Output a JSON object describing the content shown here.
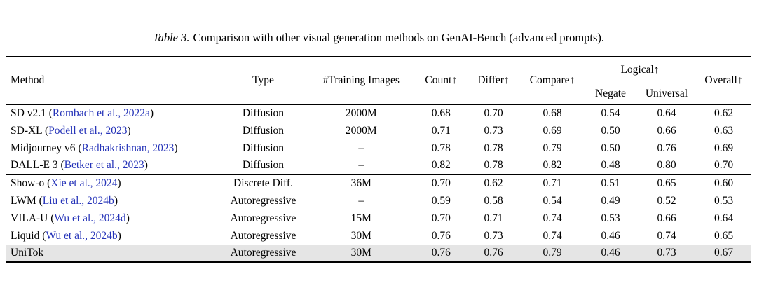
{
  "caption": {
    "label": "Table 3.",
    "text": "Comparison with other visual generation methods on GenAI-Bench (advanced prompts)."
  },
  "colors": {
    "citation": "#2533b8",
    "highlight_row": "#e5e5e5",
    "rule": "#000000",
    "background": "#ffffff"
  },
  "table": {
    "headers": {
      "method": "Method",
      "type": "Type",
      "training_images": "#Training Images",
      "count": "Count↑",
      "differ": "Differ↑",
      "compare": "Compare↑",
      "logical": "Logical↑",
      "negate": "Negate",
      "universal": "Universal",
      "overall": "Overall↑"
    },
    "groups": [
      {
        "rows": [
          {
            "method": "SD v2.1",
            "citation": "(Rombach et al., 2022a)",
            "type": "Diffusion",
            "training_images": "2000M",
            "count": "0.68",
            "differ": "0.70",
            "compare": "0.68",
            "negate": "0.54",
            "universal": "0.64",
            "overall": "0.62",
            "highlight": false
          },
          {
            "method": "SD-XL",
            "citation": "(Podell et al., 2023)",
            "type": "Diffusion",
            "training_images": "2000M",
            "count": "0.71",
            "differ": "0.73",
            "compare": "0.69",
            "negate": "0.50",
            "universal": "0.66",
            "overall": "0.63",
            "highlight": false
          },
          {
            "method": "Midjourney v6",
            "citation": "(Radhakrishnan, 2023)",
            "type": "Diffusion",
            "training_images": "–",
            "count": "0.78",
            "differ": "0.78",
            "compare": "0.79",
            "negate": "0.50",
            "universal": "0.76",
            "overall": "0.69",
            "highlight": false
          },
          {
            "method": "DALL-E 3",
            "citation": "(Betker et al., 2023)",
            "type": "Diffusion",
            "training_images": "–",
            "count": "0.82",
            "differ": "0.78",
            "compare": "0.82",
            "negate": "0.48",
            "universal": "0.80",
            "overall": "0.70",
            "highlight": false
          }
        ]
      },
      {
        "rows": [
          {
            "method": "Show-o",
            "citation": "(Xie et al., 2024)",
            "type": "Discrete Diff.",
            "training_images": "36M",
            "count": "0.70",
            "differ": "0.62",
            "compare": "0.71",
            "negate": "0.51",
            "universal": "0.65",
            "overall": "0.60",
            "highlight": false
          },
          {
            "method": "LWM",
            "citation": "(Liu et al., 2024b)",
            "type": "Autoregressive",
            "training_images": "–",
            "count": "0.59",
            "differ": "0.58",
            "compare": "0.54",
            "negate": "0.49",
            "universal": "0.52",
            "overall": "0.53",
            "highlight": false
          },
          {
            "method": "VILA-U",
            "citation": "(Wu et al., 2024d)",
            "type": "Autoregressive",
            "training_images": "15M",
            "count": "0.70",
            "differ": "0.71",
            "compare": "0.74",
            "negate": "0.53",
            "universal": "0.66",
            "overall": "0.64",
            "highlight": false
          },
          {
            "method": "Liquid",
            "citation": "(Wu et al., 2024b)",
            "type": "Autoregressive",
            "training_images": "30M",
            "count": "0.76",
            "differ": "0.73",
            "compare": "0.74",
            "negate": "0.46",
            "universal": "0.74",
            "overall": "0.65",
            "highlight": false
          },
          {
            "method": "UniTok",
            "citation": "",
            "type": "Autoregressive",
            "training_images": "30M",
            "count": "0.76",
            "differ": "0.76",
            "compare": "0.79",
            "negate": "0.46",
            "universal": "0.73",
            "overall": "0.67",
            "highlight": true
          }
        ]
      }
    ]
  }
}
